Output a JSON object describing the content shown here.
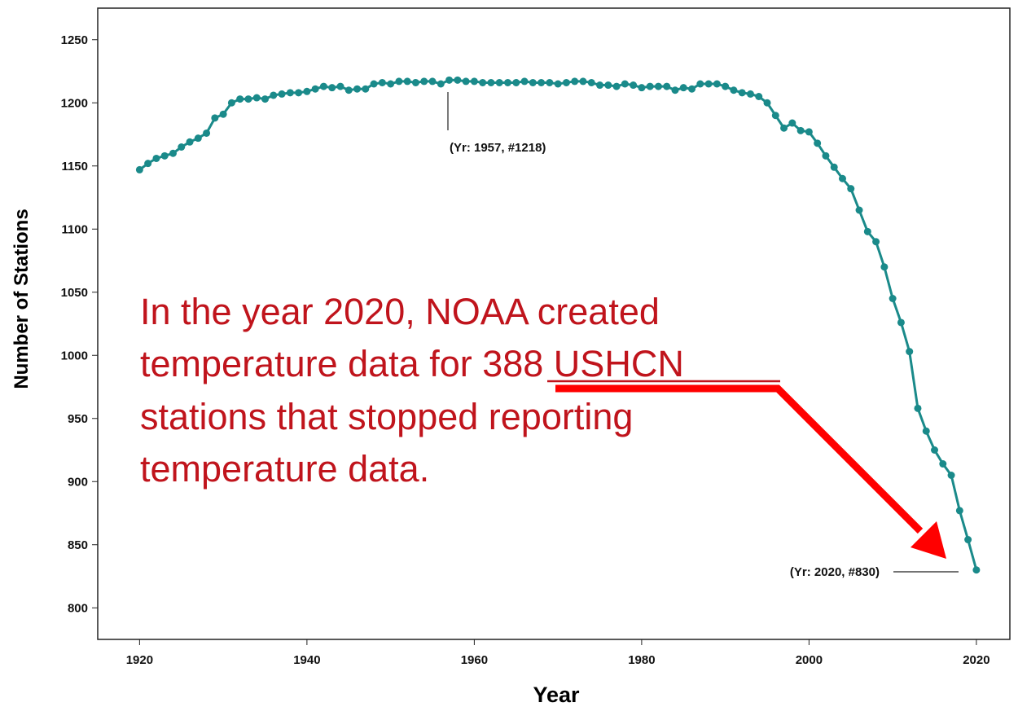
{
  "chart_data": {
    "type": "line",
    "x_label": "Year",
    "y_label": "Number of Stations",
    "x": [
      1920,
      1921,
      1922,
      1923,
      1924,
      1925,
      1926,
      1927,
      1928,
      1929,
      1930,
      1931,
      1932,
      1933,
      1934,
      1935,
      1936,
      1937,
      1938,
      1939,
      1940,
      1941,
      1942,
      1943,
      1944,
      1945,
      1946,
      1947,
      1948,
      1949,
      1950,
      1951,
      1952,
      1953,
      1954,
      1955,
      1956,
      1957,
      1958,
      1959,
      1960,
      1961,
      1962,
      1963,
      1964,
      1965,
      1966,
      1967,
      1968,
      1969,
      1970,
      1971,
      1972,
      1973,
      1974,
      1975,
      1976,
      1977,
      1978,
      1979,
      1980,
      1981,
      1982,
      1983,
      1984,
      1985,
      1986,
      1987,
      1988,
      1989,
      1990,
      1991,
      1992,
      1993,
      1994,
      1995,
      1996,
      1997,
      1998,
      1999,
      2000,
      2001,
      2002,
      2003,
      2004,
      2005,
      2006,
      2007,
      2008,
      2009,
      2010,
      2011,
      2012,
      2013,
      2014,
      2015,
      2016,
      2017,
      2018,
      2019,
      2020
    ],
    "series": [
      {
        "color": "#1a8a8a",
        "values": [
          1147,
          1152,
          1156,
          1158,
          1160,
          1165,
          1169,
          1172,
          1176,
          1188,
          1191,
          1200,
          1203,
          1203,
          1204,
          1203,
          1206,
          1207,
          1208,
          1208,
          1209,
          1211,
          1213,
          1212,
          1213,
          1210,
          1211,
          1211,
          1215,
          1216,
          1215,
          1217,
          1217,
          1216,
          1217,
          1217,
          1215,
          1218,
          1218,
          1217,
          1217,
          1216,
          1216,
          1216,
          1216,
          1216,
          1217,
          1216,
          1216,
          1216,
          1215,
          1216,
          1217,
          1217,
          1216,
          1214,
          1214,
          1213,
          1215,
          1214,
          1212,
          1213,
          1213,
          1213,
          1210,
          1212,
          1211,
          1215,
          1215,
          1215,
          1213,
          1210,
          1208,
          1207,
          1205,
          1200,
          1190,
          1180,
          1184,
          1178,
          1177,
          1168,
          1158,
          1149,
          1140,
          1132,
          1115,
          1098,
          1090,
          1070,
          1045,
          1026,
          1003,
          958,
          940,
          925,
          914,
          905,
          877,
          854,
          830
        ]
      }
    ],
    "xlim": [
      1915,
      2024
    ],
    "xticks": [
      1920,
      1940,
      1960,
      1980,
      2000,
      2020
    ],
    "ylim": [
      775,
      1275
    ],
    "yticks": [
      800,
      850,
      900,
      950,
      1000,
      1050,
      1100,
      1150,
      1200,
      1250
    ],
    "annotations": [
      "(Yr: 1957, #1218)",
      "(Yr: 2020, #830)"
    ],
    "callout": [
      "In the year 2020, NOAA created",
      "temperature data for 388 USHCN",
      "stations that stopped reporting",
      "temperature data."
    ]
  }
}
